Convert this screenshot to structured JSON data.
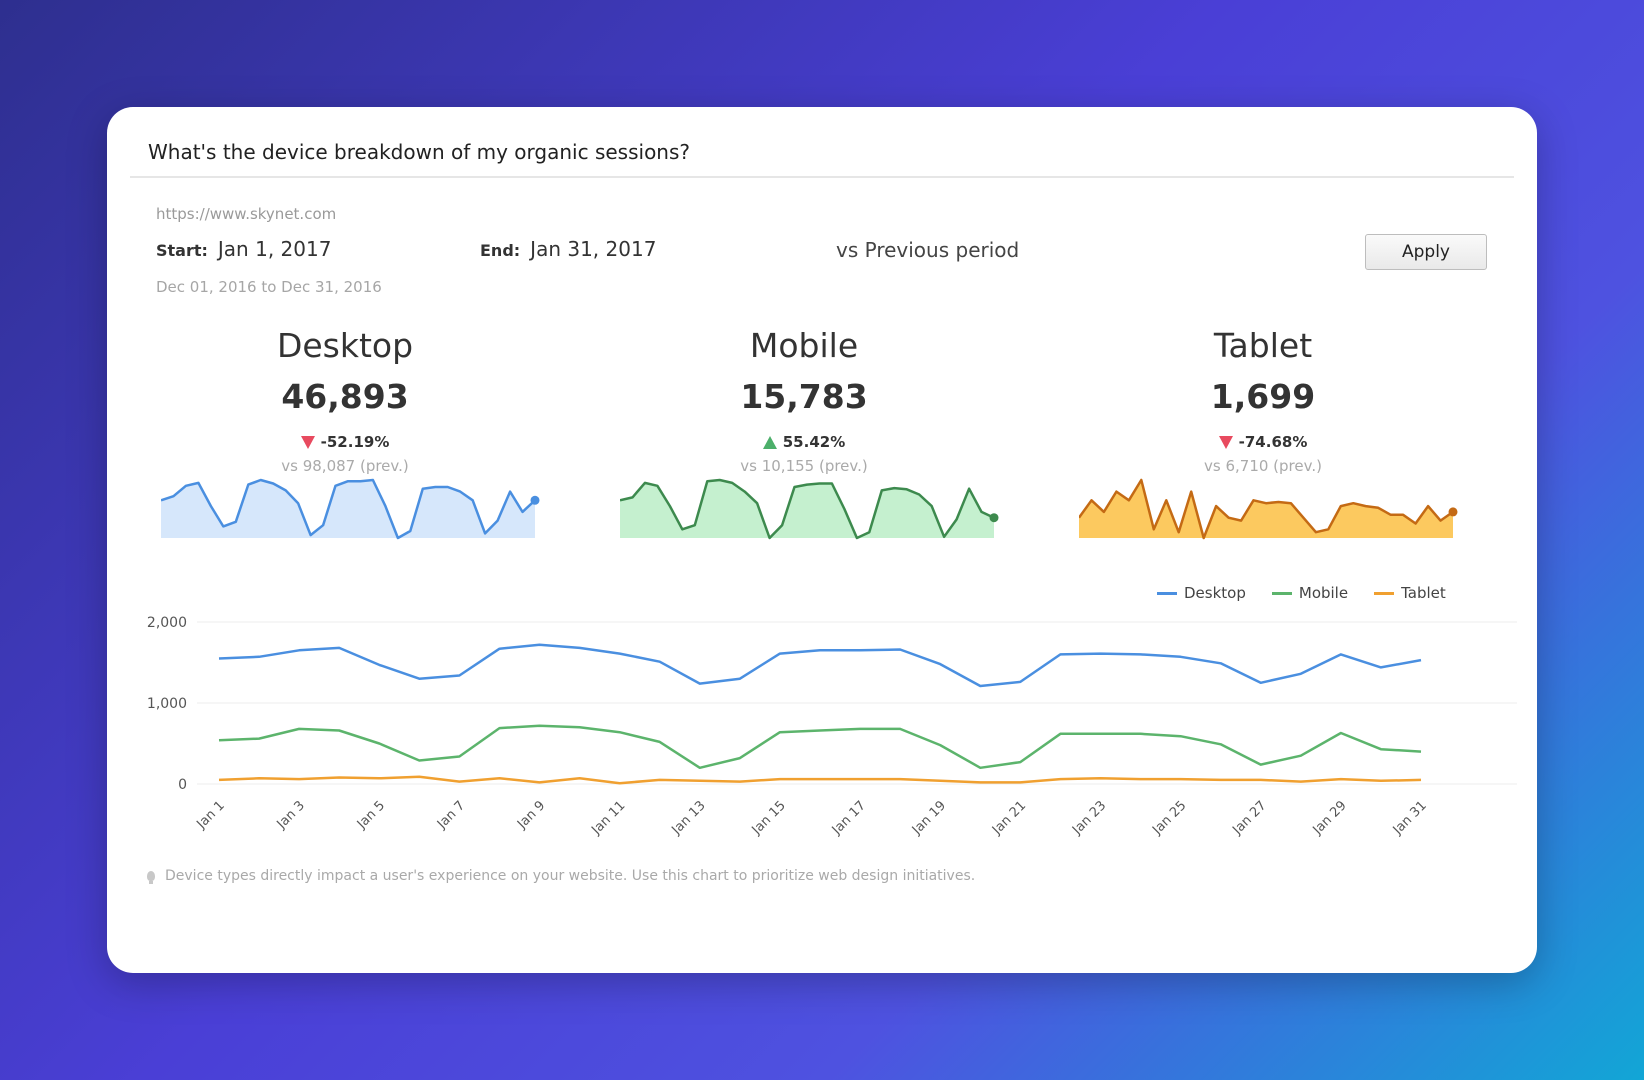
{
  "question": "What's the device breakdown of my organic sessions?",
  "site_url": "https://www.skynet.com",
  "start_label": "Start:",
  "start_date": "Jan 1, 2017",
  "end_label": "End:",
  "end_date": "Jan 31, 2017",
  "comparison": "vs Previous period",
  "apply_label": "Apply",
  "prev_range": "Dec 01, 2016 to Dec 31, 2016",
  "metrics": [
    {
      "name": "Desktop",
      "value": "46,893",
      "change": "-52.19%",
      "direction": "down",
      "prev": "vs 98,087 (prev.)",
      "color": "#4a8fe0",
      "fill": "#d6e7fb"
    },
    {
      "name": "Mobile",
      "value": "15,783",
      "change": "55.42%",
      "direction": "up",
      "prev": "vs 10,155 (prev.)",
      "color": "#3d8a4e",
      "fill": "#c5f0cf"
    },
    {
      "name": "Tablet",
      "value": "1,699",
      "change": "-74.68%",
      "direction": "down",
      "prev": "vs 6,710 (prev.)",
      "color": "#c46a14",
      "fill": "#fcc95f"
    }
  ],
  "sparklines": {
    "desktop": [
      0.65,
      0.72,
      0.9,
      0.95,
      0.55,
      0.2,
      0.28,
      0.92,
      1.0,
      0.94,
      0.82,
      0.6,
      0.05,
      0.22,
      0.9,
      0.98,
      0.98,
      1.0,
      0.55,
      0.0,
      0.12,
      0.85,
      0.88,
      0.88,
      0.8,
      0.65,
      0.08,
      0.3,
      0.8,
      0.45,
      0.65
    ],
    "mobile": [
      0.65,
      0.7,
      0.95,
      0.9,
      0.55,
      0.15,
      0.22,
      0.98,
      1.0,
      0.95,
      0.8,
      0.6,
      0.0,
      0.22,
      0.88,
      0.92,
      0.94,
      0.94,
      0.5,
      0.0,
      0.1,
      0.82,
      0.86,
      0.84,
      0.75,
      0.55,
      0.02,
      0.32,
      0.85,
      0.45,
      0.35
    ],
    "tablet": [
      0.35,
      0.65,
      0.45,
      0.8,
      0.65,
      1.0,
      0.15,
      0.65,
      0.1,
      0.8,
      0.0,
      0.55,
      0.35,
      0.3,
      0.65,
      0.6,
      0.62,
      0.6,
      0.35,
      0.1,
      0.15,
      0.55,
      0.6,
      0.55,
      0.52,
      0.4,
      0.4,
      0.25,
      0.55,
      0.3,
      0.45
    ]
  },
  "legend": [
    "Desktop",
    "Mobile",
    "Tablet"
  ],
  "chart_data": {
    "type": "line",
    "x": [
      "Jan 1",
      "Jan 2",
      "Jan 3",
      "Jan 4",
      "Jan 5",
      "Jan 6",
      "Jan 7",
      "Jan 8",
      "Jan 9",
      "Jan 10",
      "Jan 11",
      "Jan 12",
      "Jan 13",
      "Jan 14",
      "Jan 15",
      "Jan 16",
      "Jan 17",
      "Jan 18",
      "Jan 19",
      "Jan 20",
      "Jan 21",
      "Jan 22",
      "Jan 23",
      "Jan 24",
      "Jan 25",
      "Jan 26",
      "Jan 27",
      "Jan 28",
      "Jan 29",
      "Jan 30",
      "Jan 31"
    ],
    "tick_labels": [
      "Jan 1",
      "Jan 3",
      "Jan 5",
      "Jan 7",
      "Jan 9",
      "Jan 11",
      "Jan 13",
      "Jan 15",
      "Jan 17",
      "Jan 19",
      "Jan 21",
      "Jan 23",
      "Jan 25",
      "Jan 27",
      "Jan 29",
      "Jan 31"
    ],
    "y_ticks": [
      {
        "value": 0,
        "label": "0"
      },
      {
        "value": 1000,
        "label": "1,000"
      },
      {
        "value": 2000,
        "label": "2,000"
      }
    ],
    "ylim": [
      0,
      2000
    ],
    "grid": true,
    "legend_position": "top-right",
    "series": [
      {
        "name": "Desktop",
        "color": "#4a8fe0",
        "values": [
          1550,
          1570,
          1650,
          1680,
          1470,
          1300,
          1340,
          1670,
          1720,
          1680,
          1610,
          1510,
          1240,
          1300,
          1610,
          1650,
          1650,
          1660,
          1480,
          1210,
          1260,
          1600,
          1610,
          1600,
          1570,
          1490,
          1250,
          1360,
          1600,
          1440,
          1530
        ]
      },
      {
        "name": "Mobile",
        "color": "#5cb46c",
        "values": [
          540,
          560,
          680,
          660,
          500,
          290,
          340,
          690,
          720,
          700,
          640,
          520,
          200,
          320,
          640,
          660,
          680,
          680,
          480,
          200,
          270,
          620,
          620,
          620,
          590,
          490,
          240,
          350,
          630,
          430,
          400
        ]
      },
      {
        "name": "Tablet",
        "color": "#f0a030",
        "values": [
          50,
          70,
          60,
          80,
          70,
          90,
          30,
          70,
          20,
          70,
          10,
          50,
          40,
          30,
          60,
          60,
          60,
          60,
          40,
          20,
          20,
          60,
          70,
          60,
          60,
          50,
          50,
          30,
          60,
          40,
          50
        ]
      }
    ]
  },
  "tip": "Device types directly impact a user's experience on your website. Use this chart to prioritize web design initiatives."
}
